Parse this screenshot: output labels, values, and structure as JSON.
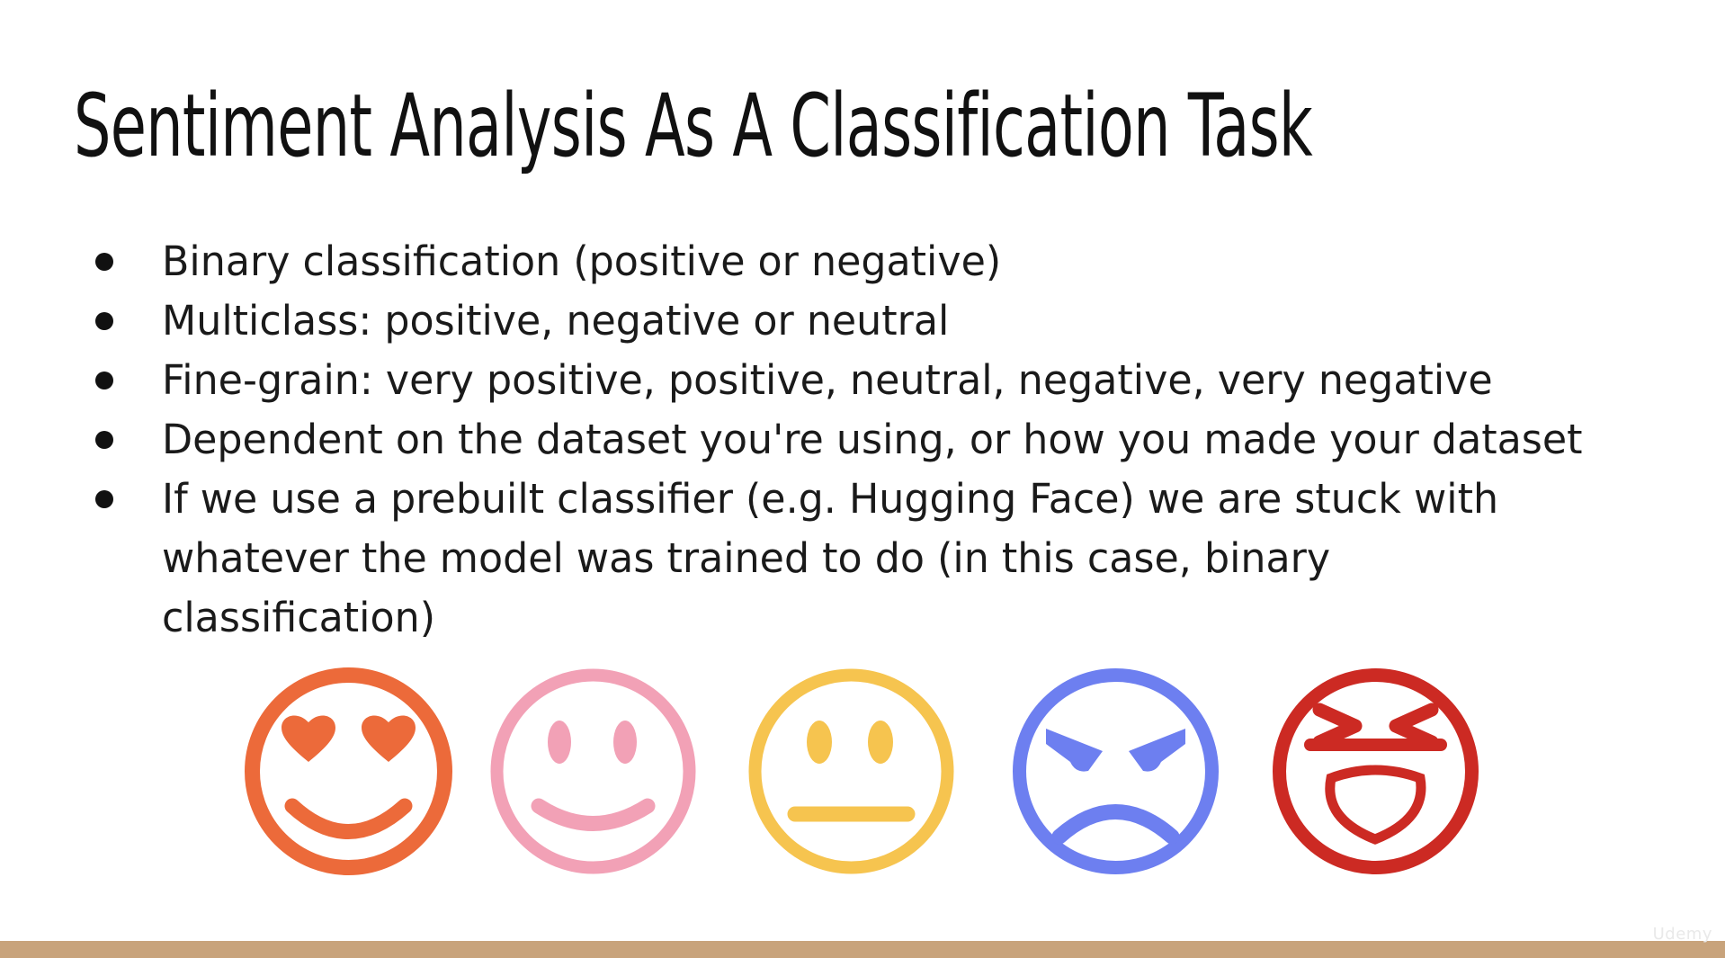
{
  "slide": {
    "title": "Sentiment Analysis As A Classification Task",
    "bullets": [
      "Binary classification (positive or negative)",
      "Multiclass: positive, negative or neutral",
      "Fine-grain: very positive, positive, neutral, negative, very negative",
      "Dependent on the dataset you're using, or how you made your dataset",
      "If we use a prebuilt classifier (e.g. Hugging Face) we are stuck with whatever the model was trained to do (in this case, binary classification)"
    ],
    "faces": [
      {
        "icon": "heart-eyes-face-icon",
        "color": "#ec6a3a"
      },
      {
        "icon": "smiling-face-icon",
        "color": "#f2a1b6"
      },
      {
        "icon": "neutral-face-icon",
        "color": "#f6c44f"
      },
      {
        "icon": "angry-face-icon",
        "color": "#6d7ff0"
      },
      {
        "icon": "furious-face-icon",
        "color": "#cc2a23"
      }
    ],
    "bottom_bar_color": "#c8a37b"
  },
  "watermark": "Udemy"
}
